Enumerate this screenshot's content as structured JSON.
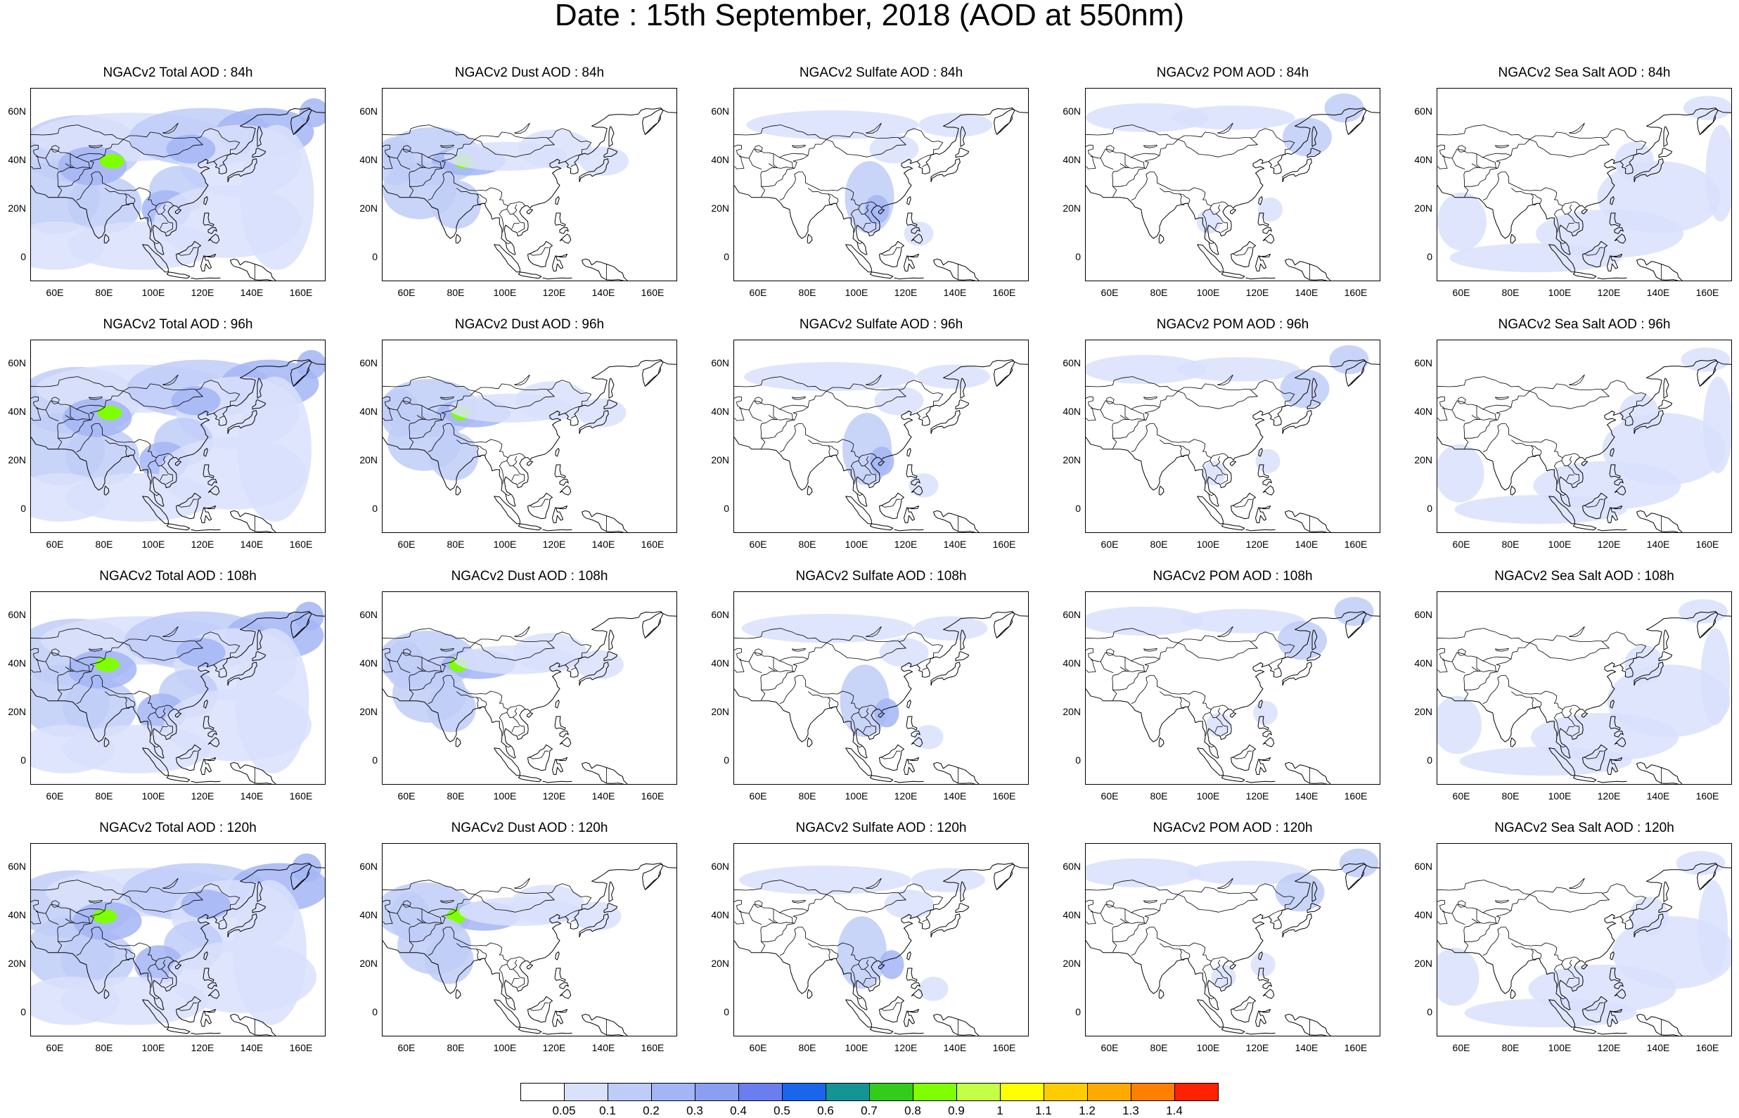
{
  "title": "Date : 15th September, 2018 (AOD at 550nm)",
  "panels": [
    [
      {
        "label": "NGACv2 Total AOD : 84h",
        "species": "total"
      },
      {
        "label": "NGACv2 Dust AOD : 84h",
        "species": "dust"
      },
      {
        "label": "NGACv2 Sulfate AOD : 84h",
        "species": "sulfate"
      },
      {
        "label": "NGACv2 POM AOD : 84h",
        "species": "pom"
      },
      {
        "label": "NGACv2 Sea Salt AOD : 84h",
        "species": "seasalt"
      }
    ],
    [
      {
        "label": "NGACv2 Total AOD : 96h",
        "species": "total"
      },
      {
        "label": "NGACv2 Dust AOD : 96h",
        "species": "dust"
      },
      {
        "label": "NGACv2 Sulfate AOD : 96h",
        "species": "sulfate"
      },
      {
        "label": "NGACv2 POM AOD : 96h",
        "species": "pom"
      },
      {
        "label": "NGACv2 Sea Salt AOD : 96h",
        "species": "seasalt"
      }
    ],
    [
      {
        "label": "NGACv2 Total AOD : 108h",
        "species": "total"
      },
      {
        "label": "NGACv2 Dust AOD : 108h",
        "species": "dust"
      },
      {
        "label": "NGACv2 Sulfate AOD : 108h",
        "species": "sulfate"
      },
      {
        "label": "NGACv2 POM AOD : 108h",
        "species": "pom"
      },
      {
        "label": "NGACv2 Sea Salt AOD : 108h",
        "species": "seasalt"
      }
    ],
    [
      {
        "label": "NGACv2 Total AOD : 120h",
        "species": "total"
      },
      {
        "label": "NGACv2 Dust AOD : 120h",
        "species": "dust"
      },
      {
        "label": "NGACv2 Sulfate AOD : 120h",
        "species": "sulfate"
      },
      {
        "label": "NGACv2 POM AOD : 120h",
        "species": "pom"
      },
      {
        "label": "NGACv2 Sea Salt  AOD : 120h",
        "species": "seasalt"
      }
    ]
  ],
  "lon_ticks": [
    "60E",
    "80E",
    "100E",
    "120E",
    "140E",
    "160E"
  ],
  "lat_ticks": [
    "60N",
    "40N",
    "20N",
    "0"
  ],
  "colorbar": {
    "labels": [
      "0.05",
      "0.1",
      "0.2",
      "0.3",
      "0.4",
      "0.5",
      "0.6",
      "0.7",
      "0.8",
      "0.9",
      "1",
      "1.1",
      "1.2",
      "1.3",
      "1.4"
    ],
    "colors": [
      "#ffffff",
      "#d9e1fb",
      "#bfccf8",
      "#a3b5f5",
      "#8a9ff2",
      "#6b7ef0",
      "#1966ec",
      "#149595",
      "#33cc1a",
      "#7fff00",
      "#c3ff44",
      "#ffff00",
      "#ffcc00",
      "#ffaa00",
      "#ff7f00",
      "#ff2200"
    ]
  }
}
